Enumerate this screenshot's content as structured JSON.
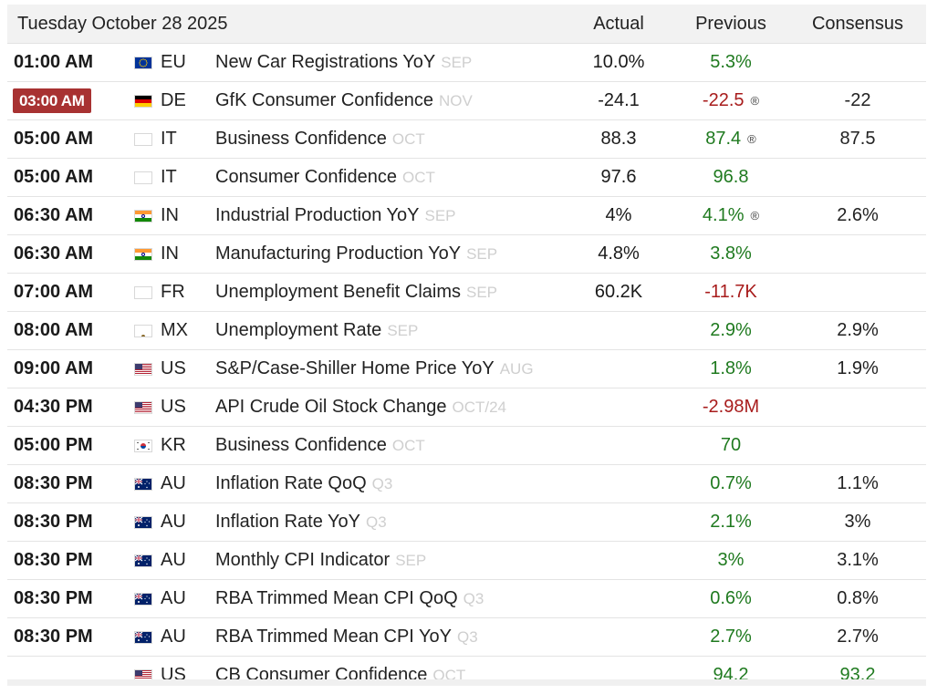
{
  "header": {
    "date": "Tuesday October 28 2025",
    "actual_label": "Actual",
    "previous_label": "Previous",
    "consensus_label": "Consensus"
  },
  "colors": {
    "positive": "#1f7a1f",
    "negative": "#a81c1c",
    "highlight": "#a83232"
  },
  "events": [
    {
      "time": "01:00 AM",
      "country": "EU",
      "flag": "eu-flag-icon",
      "event": "New Car Registrations YoY",
      "ref": "SEP",
      "actual": "10.0%",
      "previous": "5.3%",
      "previous_color": "pos",
      "revised": false,
      "consensus": "",
      "highlight": false
    },
    {
      "time": "03:00 AM",
      "country": "DE",
      "flag": "de-flag-icon",
      "event": "GfK Consumer Confidence",
      "ref": "NOV",
      "actual": "-24.1",
      "previous": "-22.5",
      "previous_color": "neg",
      "revised": true,
      "consensus": "-22",
      "highlight": true
    },
    {
      "time": "05:00 AM",
      "country": "IT",
      "flag": "it-flag-icon",
      "event": "Business Confidence",
      "ref": "OCT",
      "actual": "88.3",
      "previous": "87.4",
      "previous_color": "pos",
      "revised": true,
      "consensus": "87.5",
      "highlight": false
    },
    {
      "time": "05:00 AM",
      "country": "IT",
      "flag": "it-flag-icon",
      "event": "Consumer Confidence",
      "ref": "OCT",
      "actual": "97.6",
      "previous": "96.8",
      "previous_color": "pos",
      "revised": false,
      "consensus": "",
      "highlight": false
    },
    {
      "time": "06:30 AM",
      "country": "IN",
      "flag": "in-flag-icon",
      "event": "Industrial Production YoY",
      "ref": "SEP",
      "actual": "4%",
      "previous": "4.1%",
      "previous_color": "pos",
      "revised": true,
      "consensus": "2.6%",
      "highlight": false
    },
    {
      "time": "06:30 AM",
      "country": "IN",
      "flag": "in-flag-icon",
      "event": "Manufacturing Production YoY",
      "ref": "SEP",
      "actual": "4.8%",
      "previous": "3.8%",
      "previous_color": "pos",
      "revised": false,
      "consensus": "",
      "highlight": false
    },
    {
      "time": "07:00 AM",
      "country": "FR",
      "flag": "fr-flag-icon",
      "event": "Unemployment Benefit Claims",
      "ref": "SEP",
      "actual": "60.2K",
      "previous": "-11.7K",
      "previous_color": "neg",
      "revised": false,
      "consensus": "",
      "highlight": false
    },
    {
      "time": "08:00 AM",
      "country": "MX",
      "flag": "mx-flag-icon",
      "event": "Unemployment Rate",
      "ref": "SEP",
      "actual": "",
      "previous": "2.9%",
      "previous_color": "pos",
      "revised": false,
      "consensus": "2.9%",
      "highlight": false
    },
    {
      "time": "09:00 AM",
      "country": "US",
      "flag": "us-flag-icon",
      "event": "S&P/Case-Shiller Home Price YoY",
      "ref": "AUG",
      "actual": "",
      "previous": "1.8%",
      "previous_color": "pos",
      "revised": false,
      "consensus": "1.9%",
      "highlight": false
    },
    {
      "time": "04:30 PM",
      "country": "US",
      "flag": "us-flag-icon",
      "event": "API Crude Oil Stock Change",
      "ref": "OCT/24",
      "actual": "",
      "previous": "-2.98M",
      "previous_color": "neg",
      "revised": false,
      "consensus": "",
      "highlight": false
    },
    {
      "time": "05:00 PM",
      "country": "KR",
      "flag": "kr-flag-icon",
      "event": "Business Confidence",
      "ref": "OCT",
      "actual": "",
      "previous": "70",
      "previous_color": "pos",
      "revised": false,
      "consensus": "",
      "highlight": false
    },
    {
      "time": "08:30 PM",
      "country": "AU",
      "flag": "au-flag-icon",
      "event": "Inflation Rate QoQ",
      "ref": "Q3",
      "actual": "",
      "previous": "0.7%",
      "previous_color": "pos",
      "revised": false,
      "consensus": "1.1%",
      "highlight": false
    },
    {
      "time": "08:30 PM",
      "country": "AU",
      "flag": "au-flag-icon",
      "event": "Inflation Rate YoY",
      "ref": "Q3",
      "actual": "",
      "previous": "2.1%",
      "previous_color": "pos",
      "revised": false,
      "consensus": "3%",
      "highlight": false
    },
    {
      "time": "08:30 PM",
      "country": "AU",
      "flag": "au-flag-icon",
      "event": "Monthly CPI Indicator",
      "ref": "SEP",
      "actual": "",
      "previous": "3%",
      "previous_color": "pos",
      "revised": false,
      "consensus": "3.1%",
      "highlight": false
    },
    {
      "time": "08:30 PM",
      "country": "AU",
      "flag": "au-flag-icon",
      "event": "RBA Trimmed Mean CPI QoQ",
      "ref": "Q3",
      "actual": "",
      "previous": "0.6%",
      "previous_color": "pos",
      "revised": false,
      "consensus": "0.8%",
      "highlight": false
    },
    {
      "time": "08:30 PM",
      "country": "AU",
      "flag": "au-flag-icon",
      "event": "RBA Trimmed Mean CPI YoY",
      "ref": "Q3",
      "actual": "",
      "previous": "2.7%",
      "previous_color": "pos",
      "revised": false,
      "consensus": "2.7%",
      "highlight": false
    },
    {
      "time": "",
      "country": "US",
      "flag": "us-flag-icon",
      "event": "CB Consumer Confidence",
      "ref": "OCT",
      "actual": "",
      "previous": "94.2",
      "previous_color": "pos",
      "revised": false,
      "consensus": "93.2",
      "consensus_color": "pos",
      "highlight": false
    }
  ],
  "revised_symbol": "®"
}
